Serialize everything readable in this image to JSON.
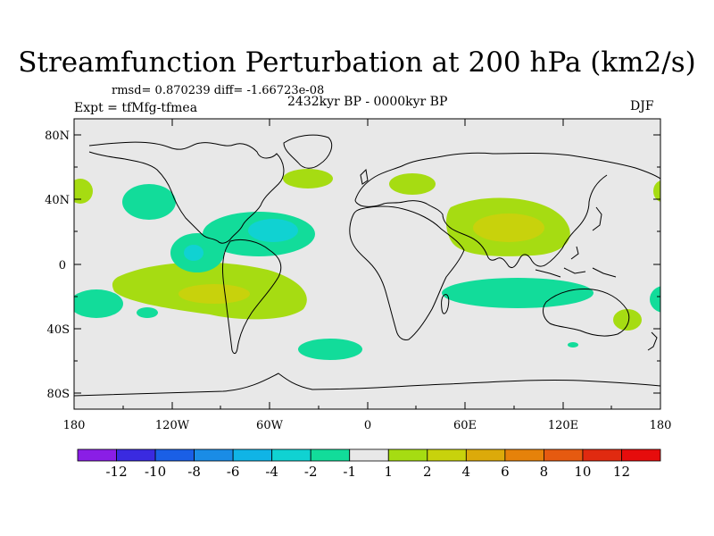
{
  "title": "Streamfunction Perturbation at 200 hPa (km2/s)",
  "stats": "rmsd= 0.870239 diff= -1.66723e-08",
  "period": "2432kyr BP - 0000kyr BP",
  "experiment": "Expt = tfMfg-tfmea",
  "season": "DJF",
  "lat_labels": [
    "80N",
    "40N",
    "0",
    "40S",
    "80S"
  ],
  "lon_labels": [
    "180",
    "120W",
    "60W",
    "0",
    "60E",
    "120E",
    "180"
  ],
  "colorbar": {
    "labels": [
      "-12",
      "-10",
      "-8",
      "-6",
      "-4",
      "-2",
      "-1",
      "1",
      "2",
      "4",
      "6",
      "8",
      "10",
      "12"
    ],
    "colors": [
      "#8a1ee6",
      "#3a2ae0",
      "#1a5fe6",
      "#1a8ce6",
      "#10b4e6",
      "#10d2d2",
      "#12dc9a",
      "#e8e8e8",
      "#a6dc12",
      "#c8d20c",
      "#dcaa0a",
      "#e6820a",
      "#e65a10",
      "#e02a10",
      "#e60c0c"
    ]
  },
  "colors": {
    "ocean_background": "#e8e8e8",
    "coastline": "#000000"
  }
}
